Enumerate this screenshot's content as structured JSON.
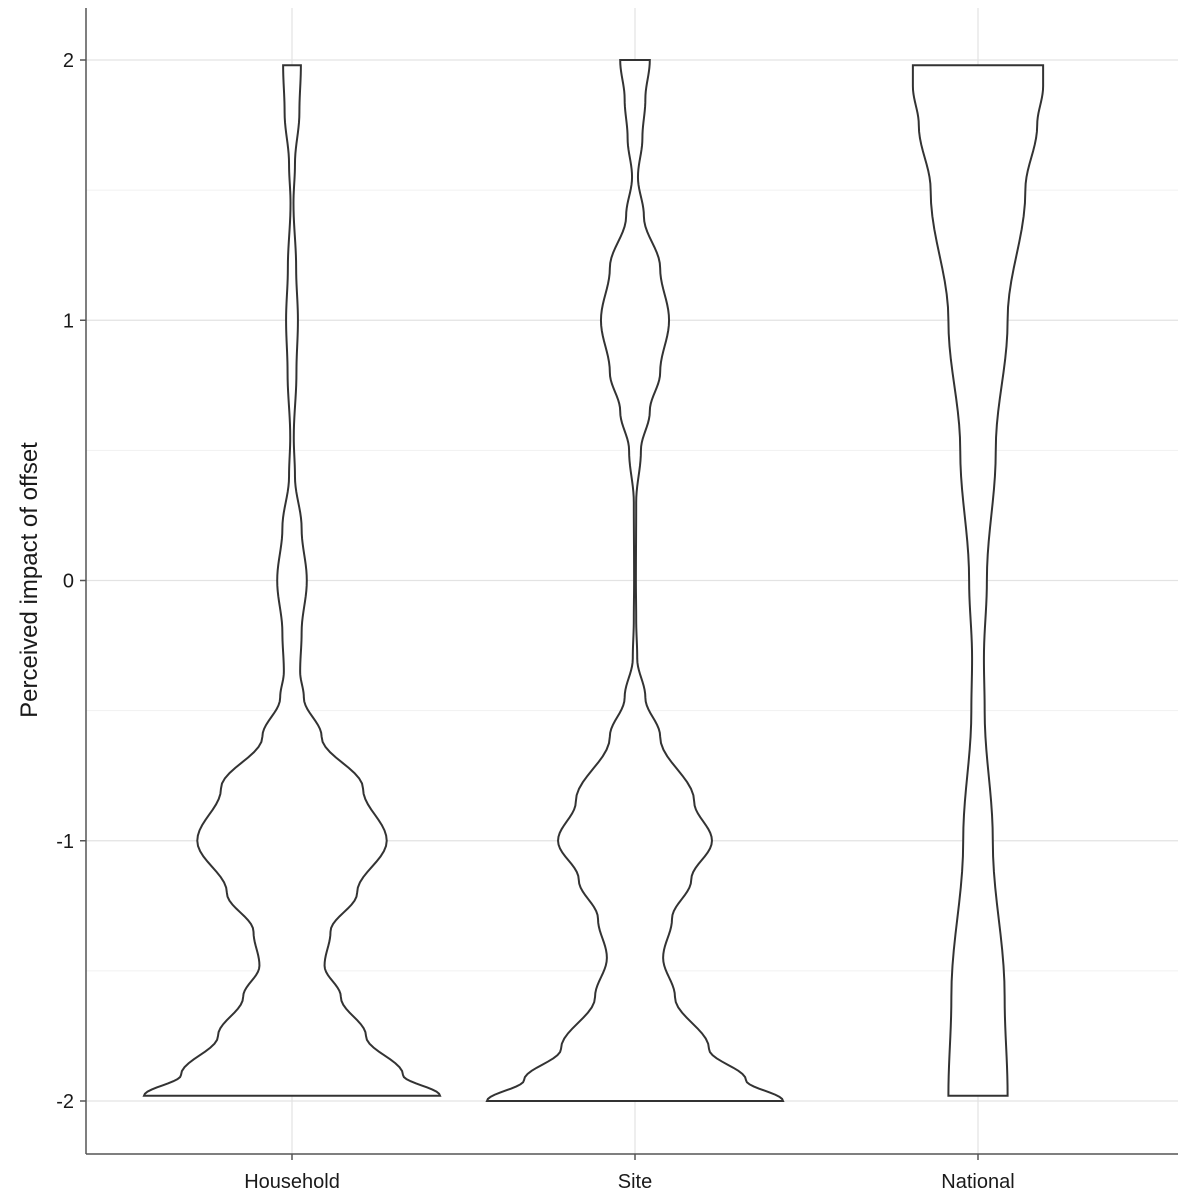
{
  "chart_data": {
    "type": "violin",
    "title": "",
    "xlabel": "",
    "ylabel": "Perceived impact of offset",
    "ylim": [
      -2.2,
      2.2
    ],
    "y_ticks": [
      -2,
      -1,
      0,
      1,
      2
    ],
    "y_tick_labels": [
      "-2",
      "-1",
      "0",
      "1",
      "2"
    ],
    "categories": [
      "Household",
      "Site",
      "National"
    ],
    "grid": true,
    "legend": "none",
    "colors": {
      "outline": "#333333",
      "fill": "#ffffff",
      "grid": "#e3e3e3",
      "axis": "#555555"
    },
    "series": [
      {
        "category": "Household",
        "y_range": [
          -1.98,
          1.98
        ],
        "density_profile": [
          [
            -1.98,
            1.0
          ],
          [
            -1.9,
            0.75
          ],
          [
            -1.75,
            0.5
          ],
          [
            -1.6,
            0.33
          ],
          [
            -1.48,
            0.22
          ],
          [
            -1.35,
            0.26
          ],
          [
            -1.2,
            0.44
          ],
          [
            -1.0,
            0.64
          ],
          [
            -0.8,
            0.48
          ],
          [
            -0.6,
            0.2
          ],
          [
            -0.45,
            0.08
          ],
          [
            -0.35,
            0.055
          ],
          [
            -0.2,
            0.065
          ],
          [
            0.0,
            0.1
          ],
          [
            0.2,
            0.065
          ],
          [
            0.4,
            0.02
          ],
          [
            0.55,
            0.012
          ],
          [
            0.8,
            0.03
          ],
          [
            1.0,
            0.04
          ],
          [
            1.2,
            0.028
          ],
          [
            1.45,
            0.01
          ],
          [
            1.6,
            0.02
          ],
          [
            1.8,
            0.05
          ],
          [
            1.98,
            0.06
          ]
        ]
      },
      {
        "category": "Site",
        "y_range": [
          -2.0,
          2.0
        ],
        "density_profile": [
          [
            -2.0,
            1.0
          ],
          [
            -1.92,
            0.75
          ],
          [
            -1.8,
            0.5
          ],
          [
            -1.6,
            0.27
          ],
          [
            -1.45,
            0.19
          ],
          [
            -1.3,
            0.25
          ],
          [
            -1.15,
            0.38
          ],
          [
            -1.0,
            0.52
          ],
          [
            -0.85,
            0.4
          ],
          [
            -0.6,
            0.17
          ],
          [
            -0.45,
            0.07
          ],
          [
            -0.3,
            0.015
          ],
          [
            -0.15,
            0.008
          ],
          [
            0.0,
            0.006
          ],
          [
            0.3,
            0.008
          ],
          [
            0.5,
            0.04
          ],
          [
            0.65,
            0.1
          ],
          [
            0.8,
            0.17
          ],
          [
            1.0,
            0.23
          ],
          [
            1.2,
            0.17
          ],
          [
            1.4,
            0.06
          ],
          [
            1.55,
            0.02
          ],
          [
            1.7,
            0.05
          ],
          [
            1.85,
            0.07
          ],
          [
            2.0,
            0.1
          ]
        ]
      },
      {
        "category": "National",
        "y_range": [
          -1.98,
          1.98
        ],
        "density_profile": [
          [
            -1.98,
            0.2
          ],
          [
            -1.6,
            0.18
          ],
          [
            -1.0,
            0.1
          ],
          [
            -0.5,
            0.045
          ],
          [
            -0.3,
            0.04
          ],
          [
            0.0,
            0.06
          ],
          [
            0.5,
            0.12
          ],
          [
            1.0,
            0.2
          ],
          [
            1.5,
            0.32
          ],
          [
            1.75,
            0.4
          ],
          [
            1.9,
            0.44
          ],
          [
            1.98,
            0.44
          ]
        ]
      }
    ]
  }
}
